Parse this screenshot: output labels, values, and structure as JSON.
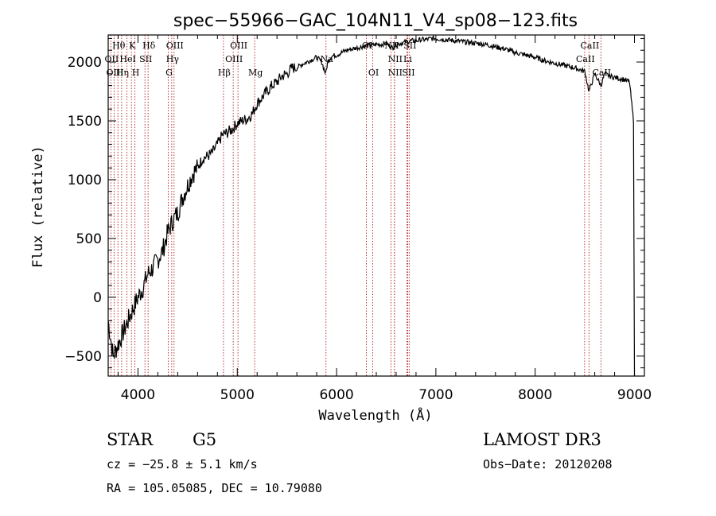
{
  "chart_data": {
    "type": "line",
    "title": "spec−55966−GAC_104N11_V4_sp08−123.fits",
    "xlabel": "Wavelength (Å)",
    "ylabel": "Flux (relative)",
    "xlim": [
      3700,
      9100
    ],
    "ylim": [
      -670,
      2230
    ],
    "x_ticks": [
      4000,
      5000,
      6000,
      7000,
      8000,
      9000
    ],
    "y_ticks": [
      -500,
      0,
      500,
      1000,
      1500,
      2000
    ],
    "line_color": "#000000",
    "marker_color": "#b22222",
    "series": [
      {
        "name": "spectrum",
        "x": [
          3700,
          3750,
          3800,
          3850,
          3900,
          3950,
          4000,
          4050,
          4100,
          4150,
          4200,
          4250,
          4300,
          4350,
          4400,
          4450,
          4500,
          4550,
          4600,
          4650,
          4700,
          4750,
          4800,
          4850,
          4900,
          4950,
          5000,
          5050,
          5100,
          5150,
          5200,
          5250,
          5300,
          5350,
          5400,
          5450,
          5500,
          5550,
          5600,
          5650,
          5700,
          5750,
          5800,
          5850,
          5890,
          5910,
          5950,
          6000,
          6050,
          6100,
          6150,
          6200,
          6250,
          6300,
          6350,
          6400,
          6450,
          6500,
          6563,
          6600,
          6650,
          6700,
          6750,
          6800,
          6850,
          6900,
          6950,
          7000,
          7100,
          7200,
          7300,
          7400,
          7500,
          7600,
          7700,
          7800,
          7900,
          8000,
          8100,
          8200,
          8300,
          8400,
          8500,
          8542,
          8600,
          8662,
          8700,
          8750,
          8800,
          8850,
          8900,
          8950,
          8990,
          9000
        ],
        "y": [
          -200,
          -500,
          -400,
          -300,
          -200,
          -100,
          0,
          80,
          200,
          250,
          320,
          400,
          550,
          650,
          720,
          850,
          950,
          1050,
          1100,
          1180,
          1200,
          1230,
          1300,
          1380,
          1400,
          1430,
          1480,
          1500,
          1520,
          1560,
          1650,
          1700,
          1750,
          1800,
          1830,
          1880,
          1900,
          1950,
          1950,
          1980,
          2000,
          2020,
          2040,
          2000,
          1900,
          2000,
          2050,
          2060,
          2080,
          2100,
          2110,
          2120,
          2130,
          2140,
          2140,
          2150,
          2150,
          2160,
          2120,
          2150,
          2160,
          2170,
          2180,
          2180,
          2190,
          2190,
          2200,
          2200,
          2190,
          2180,
          2170,
          2160,
          2150,
          2130,
          2110,
          2080,
          2060,
          2040,
          2010,
          1990,
          1970,
          1950,
          1920,
          1750,
          1900,
          1800,
          1900,
          1880,
          1870,
          1860,
          1850,
          1830,
          1500,
          -670
        ]
      }
    ],
    "line_markers": [
      {
        "label": "Hθ",
        "x": 3798,
        "row": 1
      },
      {
        "label": "K",
        "x": 3934,
        "row": 1
      },
      {
        "label": "Hδ",
        "x": 4102,
        "row": 1
      },
      {
        "label": "OIII",
        "x": 4363,
        "row": 1
      },
      {
        "label": "OIII",
        "x": 5007,
        "row": 1
      },
      {
        "label": "OI",
        "x": 6300,
        "row": 1
      },
      {
        "label": "NII",
        "x": 6548,
        "row": 1
      },
      {
        "label": "SII",
        "x": 6731,
        "row": 1
      },
      {
        "label": "CaII",
        "x": 8542,
        "row": 1
      },
      {
        "label": "OII",
        "x": 3727,
        "row": 2
      },
      {
        "label": "HeI",
        "x": 3889,
        "row": 2
      },
      {
        "label": "SII",
        "x": 4070,
        "row": 2
      },
      {
        "label": "Hγ",
        "x": 4340,
        "row": 2
      },
      {
        "label": "OIII",
        "x": 4959,
        "row": 2
      },
      {
        "label": "Na",
        "x": 5893,
        "row": 2
      },
      {
        "label": "NII",
        "x": 6583,
        "row": 2
      },
      {
        "label": "Li",
        "x": 6708,
        "row": 2
      },
      {
        "label": "CaII",
        "x": 8498,
        "row": 2
      },
      {
        "label": "OIII",
        "x": 3760,
        "row": 3
      },
      {
        "label": "Hη",
        "x": 3835,
        "row": 3
      },
      {
        "label": "H",
        "x": 3969,
        "row": 3
      },
      {
        "label": "G",
        "x": 4305,
        "row": 3
      },
      {
        "label": "Hβ",
        "x": 4861,
        "row": 3
      },
      {
        "label": "Mg",
        "x": 5175,
        "row": 3
      },
      {
        "label": "OI",
        "x": 6364,
        "row": 3
      },
      {
        "label": "NII",
        "x": 6583,
        "row": 3
      },
      {
        "label": "SII",
        "x": 6716,
        "row": 3
      },
      {
        "label": "CaII",
        "x": 8662,
        "row": 3
      }
    ]
  },
  "footer": {
    "object_type": "STAR",
    "subclass": "G5",
    "survey": "LAMOST DR3",
    "redshift": "cz = −25.8 ± 5.1 km/s",
    "obs_date": "Obs−Date: 20120208",
    "coords": "RA = 105.05085, DEC =  10.79080"
  }
}
